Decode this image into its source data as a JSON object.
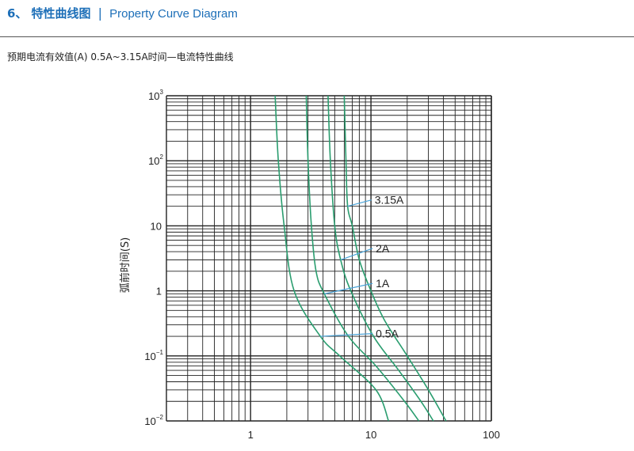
{
  "header": {
    "number": "6、",
    "title_cn": "特性曲线图",
    "separator": "|",
    "title_en": "Property Curve Diagram"
  },
  "subtitle": "预期电流有效值(A)  0.5A~3.15A时间—电流特性曲线",
  "colors": {
    "curve": "#2a9d6f",
    "grid": "#222222",
    "label_line": "#4aa3d8",
    "title": "#1d6fb8"
  },
  "chart_data": {
    "type": "line",
    "xscale": "log",
    "yscale": "log",
    "xlim": [
      0.2,
      100
    ],
    "ylim": [
      0.01,
      1000
    ],
    "grid": true,
    "ylabel": "弧前时间(S)",
    "xlabel": "",
    "x_ticks": [
      {
        "value": 1,
        "label": "1"
      },
      {
        "value": 10,
        "label": "10"
      },
      {
        "value": 100,
        "label": "100"
      }
    ],
    "y_ticks": [
      {
        "value": 1000,
        "base": "10",
        "exp": "3"
      },
      {
        "value": 100,
        "base": "10",
        "exp": "2"
      },
      {
        "value": 10,
        "base": "10",
        "exp": ""
      },
      {
        "value": 1,
        "base": "1",
        "exp": ""
      },
      {
        "value": 0.1,
        "base": "10",
        "exp": "−1"
      },
      {
        "value": 0.01,
        "base": "10",
        "exp": "−2"
      }
    ],
    "series": [
      {
        "name": "0.5A",
        "label_anchor": [
          3.8,
          0.2
        ],
        "label_at": [
          10,
          0.22
        ],
        "points": [
          [
            1.6,
            1000
          ],
          [
            1.7,
            100
          ],
          [
            1.9,
            10
          ],
          [
            2.3,
            1
          ],
          [
            3.8,
            0.2
          ],
          [
            5.5,
            0.1
          ],
          [
            11,
            0.03
          ],
          [
            14,
            0.01
          ]
        ]
      },
      {
        "name": "1A",
        "label_anchor": [
          4.1,
          0.9
        ],
        "label_at": [
          10,
          1.3
        ],
        "points": [
          [
            2.9,
            1000
          ],
          [
            3.0,
            100
          ],
          [
            3.2,
            10
          ],
          [
            3.5,
            2
          ],
          [
            4.1,
            0.9
          ],
          [
            6.5,
            0.2
          ],
          [
            11,
            0.07
          ],
          [
            19,
            0.02
          ],
          [
            25,
            0.01
          ]
        ]
      },
      {
        "name": "2A",
        "label_anchor": [
          5.6,
          3.0
        ],
        "label_at": [
          10,
          4.5
        ],
        "points": [
          [
            4.4,
            1000
          ],
          [
            4.6,
            100
          ],
          [
            5.0,
            10
          ],
          [
            5.6,
            3
          ],
          [
            6.8,
            1
          ],
          [
            10.5,
            0.2
          ],
          [
            17,
            0.06
          ],
          [
            26,
            0.02
          ],
          [
            33,
            0.01
          ]
        ]
      },
      {
        "name": "3.15A",
        "label_anchor": [
          6.4,
          20
        ],
        "label_at": [
          9.8,
          25
        ],
        "points": [
          [
            6.0,
            1000
          ],
          [
            6.2,
            100
          ],
          [
            6.4,
            20
          ],
          [
            7.0,
            10
          ],
          [
            8.0,
            3
          ],
          [
            10,
            1
          ],
          [
            13,
            0.35
          ],
          [
            20,
            0.1
          ],
          [
            30,
            0.03
          ],
          [
            42,
            0.01
          ]
        ]
      }
    ]
  }
}
